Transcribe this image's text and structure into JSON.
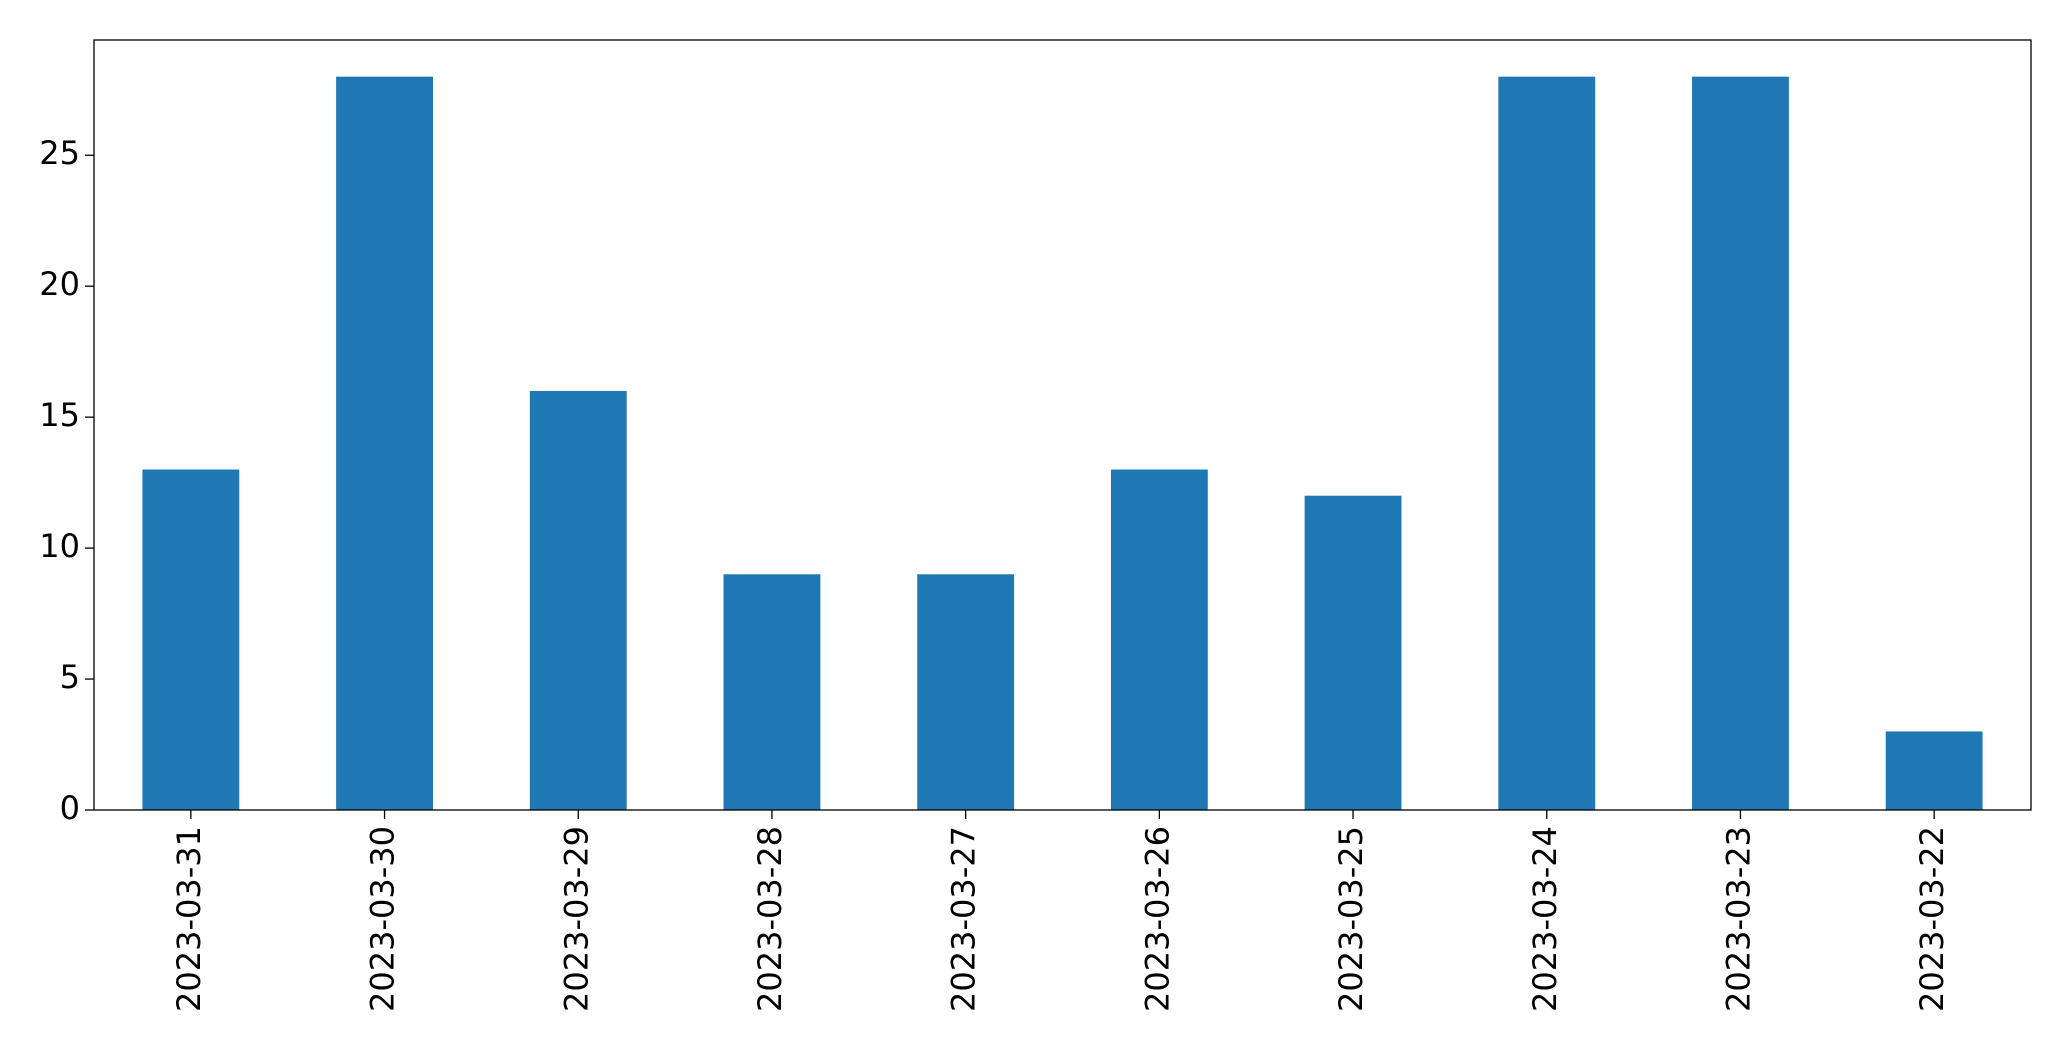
{
  "chart_data": {
    "type": "bar",
    "categories": [
      "2023-03-31",
      "2023-03-30",
      "2023-03-29",
      "2023-03-28",
      "2023-03-27",
      "2023-03-26",
      "2023-03-25",
      "2023-03-24",
      "2023-03-23",
      "2023-03-22"
    ],
    "values": [
      13,
      28,
      16,
      9,
      9,
      13,
      12,
      28,
      28,
      3
    ],
    "color": "#1f77b4",
    "ylim": [
      0,
      29.4
    ],
    "yticks": [
      0,
      5,
      10,
      15,
      20,
      25
    ],
    "grid": false
  }
}
